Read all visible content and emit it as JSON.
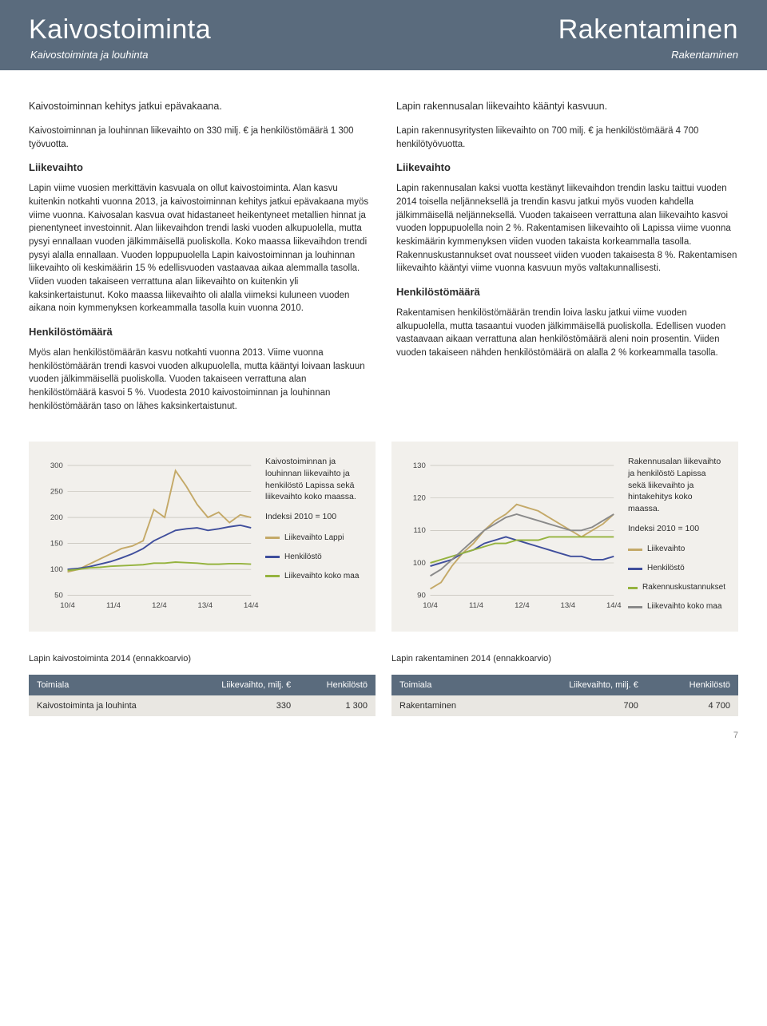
{
  "header": {
    "left_title": "Kaivostoiminta",
    "left_sub": "Kaivostoiminta ja louhinta",
    "right_title": "Rakentaminen",
    "right_sub": "Rakentaminen"
  },
  "left_col": {
    "lead": "Kaivostoiminnan kehitys jatkui epävakaana.",
    "intro": "Kaivostoiminnan ja louhinnan liikevaihto on 330 milj. € ja henkilöstömäärä 1 300 työvuotta.",
    "h1": "Liikevaihto",
    "p1": "Lapin viime vuosien merkittävin kasvuala on ollut kaivostoiminta. Alan kasvu kuitenkin notkahti vuonna 2013, ja kaivostoiminnan kehitys jatkui epävakaana myös viime vuonna. Kaivosalan kasvua ovat hidastaneet heikentyneet metallien hinnat ja pienentyneet investoinnit. Alan liikevaihdon trendi laski vuoden alkupuolella, mutta pysyi ennallaan vuoden jälkimmäisellä puoliskolla. Koko maassa liikevaihdon trendi pysyi alalla ennallaan. Vuoden loppupuolella Lapin kaivostoiminnan ja louhinnan liikevaihto oli keskimäärin 15 % edellisvuoden vastaavaa aikaa alemmalla tasolla. Viiden vuoden takaiseen verrattuna alan liikevaihto on kuitenkin yli kaksinkertaistunut. Koko maassa liikevaihto oli alalla viimeksi kuluneen vuoden aikana noin kymmenyksen korkeammalla tasolla kuin vuonna 2010.",
    "h2": "Henkilöstömäärä",
    "p2": "Myös alan henkilöstömäärän kasvu notkahti vuonna 2013. Viime vuonna henkilöstömäärän trendi kasvoi vuoden alkupuolella, mutta kääntyi loivaan laskuun vuoden jälkimmäisellä puoliskolla. Vuoden takaiseen verrattuna alan henkilöstömäärä kasvoi 5 %. Vuodesta 2010 kaivostoiminnan ja louhinnan henkilöstömäärän taso on lähes kaksinkertaistunut."
  },
  "right_col": {
    "lead": "Lapin rakennusalan liikevaihto kääntyi kasvuun.",
    "intro": "Lapin rakennusyritysten liikevaihto on 700 milj. € ja henkilöstömäärä 4 700 henkilötyövuotta.",
    "h1": "Liikevaihto",
    "p1": "Lapin rakennusalan kaksi vuotta kestänyt liikevaihdon trendin lasku taittui vuoden 2014 toisella neljänneksellä ja trendin kasvu jatkui myös vuoden kahdella jälkimmäisellä neljänneksellä. Vuoden takaiseen verrattuna alan liikevaihto kasvoi vuoden loppupuolella noin 2 %. Rakentamisen liikevaihto oli Lapissa viime vuonna keskimäärin kymmenyksen viiden vuoden takaista korkeammalla tasolla. Rakennuskustannukset ovat nousseet viiden vuoden takaisesta 8 %. Rakentamisen liikevaihto kääntyi viime vuonna kasvuun myös valtakunnallisesti.",
    "h2": "Henkilöstömäärä",
    "p2": "Rakentamisen henkilöstömäärän trendin loiva lasku jatkui viime vuoden alkupuolella, mutta tasaantui vuoden jälkimmäisellä puoliskolla. Edellisen vuoden vastaavaan aikaan verrattuna alan henkilöstömäärä aleni noin prosentin. Viiden vuoden takaiseen nähden henkilöstömäärä on alalla 2 % korkeammalla tasolla."
  },
  "chart1": {
    "type": "line",
    "title": "Kaivostoiminnan ja louhinnan liikevaihto ja henkilöstö Lapissa sekä liikevaihto koko maassa.",
    "index_note": "Indeksi 2010 = 100",
    "x_labels": [
      "10/4",
      "11/4",
      "12/4",
      "13/4",
      "14/4"
    ],
    "y_ticks": [
      50,
      100,
      150,
      200,
      250,
      300
    ],
    "ylim": [
      50,
      300
    ],
    "background_color": "#f2f0ec",
    "grid_color": "#b9b5ab",
    "series": [
      {
        "name": "Liikevaihto Lappi",
        "color": "#c4a968",
        "points": [
          95,
          100,
          110,
          120,
          130,
          140,
          145,
          155,
          215,
          200,
          290,
          260,
          225,
          200,
          210,
          190,
          205,
          200
        ]
      },
      {
        "name": "Henkilöstö",
        "color": "#3f4e9c",
        "points": [
          100,
          102,
          105,
          110,
          115,
          122,
          130,
          140,
          155,
          165,
          175,
          178,
          180,
          175,
          178,
          182,
          185,
          180
        ]
      },
      {
        "name": "Liikevaihto koko maa",
        "color": "#95b33e",
        "points": [
          98,
          100,
          103,
          104,
          106,
          107,
          108,
          109,
          112,
          112,
          114,
          113,
          112,
          110,
          110,
          111,
          111,
          110
        ]
      }
    ],
    "line_width": 2
  },
  "chart2": {
    "type": "line",
    "title": "Rakennusalan liikevaihto ja henkilöstö Lapissa sekä liikevaihto ja hintakehitys koko maassa.",
    "index_note": "Indeksi 2010 = 100",
    "x_labels": [
      "10/4",
      "11/4",
      "12/4",
      "13/4",
      "14/4"
    ],
    "y_ticks": [
      90,
      100,
      110,
      120,
      130
    ],
    "ylim": [
      90,
      130
    ],
    "background_color": "#f2f0ec",
    "grid_color": "#b9b5ab",
    "series": [
      {
        "name": "Liikevaihto",
        "color": "#c4a968",
        "points": [
          92,
          94,
          99,
          103,
          106,
          110,
          113,
          115,
          118,
          117,
          116,
          114,
          112,
          110,
          108,
          110,
          112,
          115
        ]
      },
      {
        "name": "Henkilöstö",
        "color": "#3f4e9c",
        "points": [
          99,
          100,
          101,
          103,
          104,
          106,
          107,
          108,
          107,
          106,
          105,
          104,
          103,
          102,
          102,
          101,
          101,
          102
        ]
      },
      {
        "name": "Rakennuskustannukset",
        "color": "#95b33e",
        "points": [
          100,
          101,
          102,
          103,
          104,
          105,
          106,
          106,
          107,
          107,
          107,
          108,
          108,
          108,
          108,
          108,
          108,
          108
        ]
      },
      {
        "name": "Liikevaihto koko maa",
        "color": "#8a8a8a",
        "points": [
          96,
          98,
          101,
          104,
          107,
          110,
          112,
          114,
          115,
          114,
          113,
          112,
          111,
          110,
          110,
          111,
          113,
          115
        ]
      }
    ],
    "line_width": 2
  },
  "table1": {
    "title": "Lapin kaivostoiminta 2014 (ennakkoarvio)",
    "headers": [
      "Toimiala",
      "Liikevaihto, milj. €",
      "Henkilöstö"
    ],
    "rows": [
      [
        "Kaivostoiminta ja louhinta",
        "330",
        "1 300"
      ]
    ],
    "header_bg": "#5a6b7d",
    "row_bg": "#e9e7e2"
  },
  "table2": {
    "title": "Lapin rakentaminen 2014 (ennakkoarvio)",
    "headers": [
      "Toimiala",
      "Liikevaihto, milj. €",
      "Henkilöstö"
    ],
    "rows": [
      [
        "Rakentaminen",
        "700",
        "4 700"
      ]
    ],
    "header_bg": "#5a6b7d",
    "row_bg": "#e9e7e2"
  },
  "page_number": "7"
}
